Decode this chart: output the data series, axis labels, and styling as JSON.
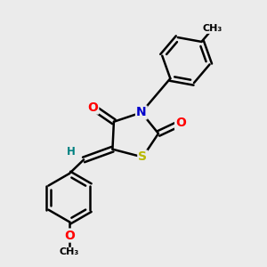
{
  "bg_color": "#ebebeb",
  "line_color": "#000000",
  "bond_width": 1.8,
  "atom_colors": {
    "O": "#ff0000",
    "N": "#0000cc",
    "S": "#b8b800",
    "H": "#008080",
    "C": "#000000"
  },
  "font_size_atom": 10,
  "font_size_small": 8.5
}
